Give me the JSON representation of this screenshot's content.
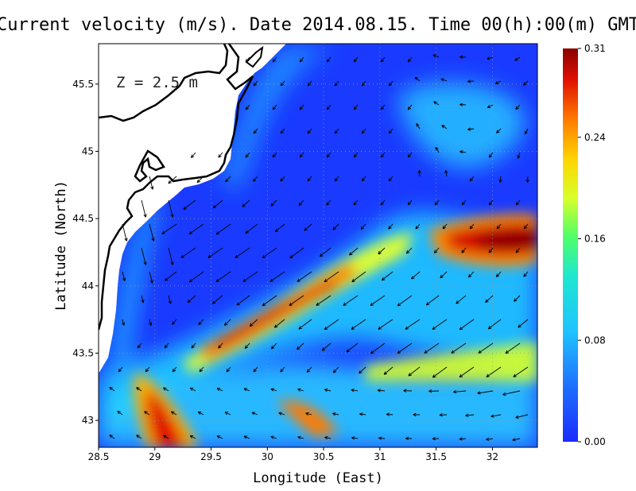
{
  "chart_data": {
    "type": "heatmap",
    "title": "Current velocity (m/s). Date 2014.08.15. Time 00(h):00(m) GMT",
    "xlabel": "Longitude (East)",
    "ylabel": "Latitude (North)",
    "annotation": "Z = 2.5 m",
    "xlim": [
      28.5,
      32.4
    ],
    "ylim": [
      42.8,
      45.8
    ],
    "xticks": [
      28.5,
      29,
      29.5,
      30,
      30.5,
      31,
      31.5,
      32
    ],
    "xtick_labels": [
      "28.5",
      "29",
      "29.5",
      "30",
      "30.5",
      "31",
      "31.5",
      "32"
    ],
    "yticks": [
      43,
      43.5,
      44,
      44.5,
      45,
      45.5
    ],
    "ytick_labels": [
      "43",
      "43.5",
      "44",
      "44.5",
      "45",
      "45.5"
    ],
    "grid": true,
    "colorbar": {
      "min": 0.0,
      "max": 0.31,
      "ticks": [
        0.0,
        0.08,
        0.16,
        0.24,
        0.31
      ],
      "tick_labels": [
        "0.00",
        "0.08",
        "0.16",
        "0.24",
        "0.31"
      ],
      "colormap": [
        "#1a2bff",
        "#1f6fff",
        "#1fd6ff",
        "#2aff8c",
        "#e6ff2a",
        "#ffb000",
        "#ff4a00",
        "#d40000",
        "#8a0000"
      ]
    },
    "velocity_field": [
      {
        "lon": 31.85,
        "lat": 44.35,
        "speed": 0.31
      },
      {
        "lon": 29.1,
        "lat": 43.0,
        "speed": 0.3
      },
      {
        "lon": 29.8,
        "lat": 43.65,
        "speed": 0.28
      },
      {
        "lon": 30.5,
        "lat": 44.0,
        "speed": 0.25
      },
      {
        "lon": 30.5,
        "lat": 43.05,
        "speed": 0.22
      },
      {
        "lon": 31.3,
        "lat": 44.3,
        "speed": 0.2
      },
      {
        "lon": 30.9,
        "lat": 44.6,
        "speed": 0.12
      },
      {
        "lon": 30.0,
        "lat": 44.9,
        "speed": 0.03
      },
      {
        "lon": 31.6,
        "lat": 45.35,
        "speed": 0.08
      },
      {
        "lon": 30.8,
        "lat": 43.45,
        "speed": 0.05
      }
    ]
  },
  "colors": {
    "land": "#ffffff",
    "coast": "#000000",
    "grid": "#9a9a9a"
  }
}
